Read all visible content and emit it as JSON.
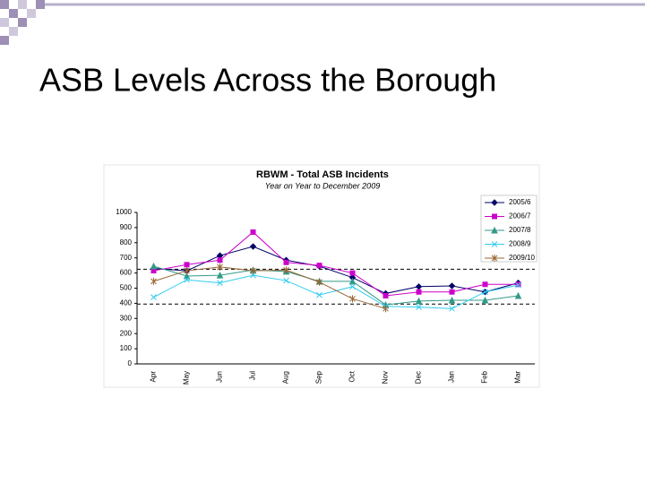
{
  "slide_title": "ASB Levels Across the Borough",
  "chart_data": {
    "type": "line",
    "title": "RBWM - Total ASB Incidents",
    "subtitle": "Year on Year to December 2009",
    "categories": [
      "Apr",
      "May",
      "Jun",
      "Jul",
      "Aug",
      "Sep",
      "Oct",
      "Nov",
      "Dec",
      "Jan",
      "Feb",
      "Mar"
    ],
    "ylim": [
      0,
      1000
    ],
    "yticks": [
      0,
      100,
      200,
      300,
      400,
      500,
      600,
      700,
      800,
      900,
      1000
    ],
    "reference_lines": [
      625,
      395
    ],
    "series": [
      {
        "name": "2005/6",
        "color": "#000066",
        "marker": "diamond",
        "values": [
          630,
          615,
          715,
          775,
          685,
          645,
          570,
          465,
          510,
          515,
          475,
          535
        ]
      },
      {
        "name": "2006/7",
        "color": "#cc00cc",
        "marker": "square",
        "values": [
          615,
          655,
          685,
          870,
          670,
          650,
          600,
          450,
          475,
          475,
          525,
          525
        ]
      },
      {
        "name": "2007/8",
        "color": "#339988",
        "marker": "triangle",
        "values": [
          645,
          580,
          585,
          620,
          610,
          545,
          545,
          390,
          415,
          420,
          420,
          450
        ]
      },
      {
        "name": "2008/9",
        "color": "#33ccee",
        "marker": "x",
        "values": [
          440,
          555,
          535,
          585,
          550,
          455,
          510,
          380,
          375,
          365,
          475,
          520
        ]
      },
      {
        "name": "2009/10",
        "color": "#996633",
        "marker": "star",
        "values": [
          545,
          615,
          640,
          615,
          620,
          540,
          430,
          365,
          null,
          null,
          null,
          null
        ]
      }
    ]
  }
}
